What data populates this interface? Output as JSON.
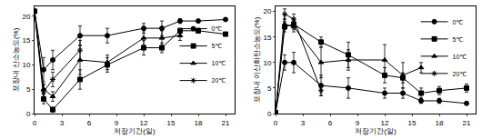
{
  "chart_data": [
    {
      "type": "line",
      "x_label": "저장기간(일)",
      "y_label": "포장내 산소농도(%)",
      "x": [
        0,
        1,
        2,
        5,
        8,
        12,
        14,
        16,
        18,
        21
      ],
      "xlim": [
        0,
        22
      ],
      "xticks": [
        0,
        3,
        6,
        9,
        12,
        15,
        18,
        21
      ],
      "ylim": [
        0,
        22
      ],
      "yticks": [
        0,
        5,
        10,
        15,
        20
      ],
      "legend": "right",
      "grid": false,
      "series": [
        {
          "name": "0℃",
          "color": "#000000",
          "marker": "circle",
          "values": [
            21,
            9,
            11,
            16,
            16,
            17.5,
            17.5,
            19,
            19,
            19.3
          ],
          "errors": [
            0.3,
            2.5,
            2,
            2,
            1.5,
            1,
            1.5,
            0.5,
            0.3,
            0.3
          ]
        },
        {
          "name": "5℃",
          "color": "#000000",
          "marker": "square",
          "values": [
            21,
            3,
            0.8,
            7,
            10,
            13.5,
            13.5,
            17,
            17,
            16.3
          ],
          "errors": [
            0.3,
            1,
            0.5,
            2,
            1.5,
            1.5,
            1,
            0.5,
            0.5,
            0.3
          ]
        },
        {
          "name": "10℃",
          "color": "#000000",
          "marker": "triangle",
          "values": [
            21,
            5,
            3.5,
            11,
            10.5,
            15.5,
            15.5,
            16,
            null,
            null
          ],
          "errors": [
            0.3,
            1,
            1,
            3,
            1.5,
            1.5,
            1.5,
            1,
            null,
            null
          ]
        },
        {
          "name": "20℃",
          "color": "#000000",
          "marker": "asterisk",
          "values": [
            21,
            4.5,
            7,
            13,
            null,
            null,
            null,
            null,
            null,
            null
          ],
          "errors": [
            0.3,
            1.5,
            1.5,
            2,
            null,
            null,
            null,
            null,
            null,
            null
          ]
        }
      ]
    },
    {
      "type": "line",
      "x_label": "저장기간(일)",
      "y_label": "포장내 이산화탄소농도(%)",
      "x": [
        0,
        1,
        2,
        5,
        8,
        12,
        14,
        16,
        18,
        21
      ],
      "xlim": [
        0,
        22
      ],
      "xticks": [
        0,
        3,
        6,
        9,
        12,
        15,
        18,
        21
      ],
      "ylim": [
        0,
        21
      ],
      "yticks": [
        0,
        5,
        10,
        15,
        20
      ],
      "legend": "upper right",
      "grid": false,
      "series": [
        {
          "name": "0℃",
          "color": "#000000",
          "marker": "circle",
          "values": [
            0.2,
            10,
            10,
            5.5,
            5,
            4,
            4,
            2.5,
            2.5,
            2
          ],
          "errors": [
            0.1,
            1.5,
            2,
            2,
            2,
            1,
            1,
            0.5,
            0.5,
            0.3
          ]
        },
        {
          "name": "5℃",
          "color": "#000000",
          "marker": "square",
          "values": [
            0.2,
            17,
            17.5,
            14,
            11.5,
            7.5,
            7,
            4,
            4.5,
            5
          ],
          "errors": [
            0.1,
            1,
            1,
            1,
            2.5,
            1.5,
            1,
            1,
            0.8,
            0.8
          ]
        },
        {
          "name": "10℃",
          "color": "#000000",
          "marker": "triangle",
          "values": [
            0.2,
            17.5,
            17,
            10,
            10.5,
            10.5,
            7.5,
            9,
            null,
            null
          ],
          "errors": [
            0.1,
            1,
            1,
            3,
            2,
            3,
            2.5,
            1,
            null,
            null
          ]
        },
        {
          "name": "20℃",
          "color": "#000000",
          "marker": "asterisk",
          "values": [
            0.2,
            19.5,
            18.5,
            4.5,
            null,
            null,
            null,
            null,
            null,
            null
          ],
          "errors": [
            0.1,
            1,
            1,
            1,
            null,
            null,
            null,
            null,
            null,
            null
          ]
        }
      ]
    }
  ]
}
